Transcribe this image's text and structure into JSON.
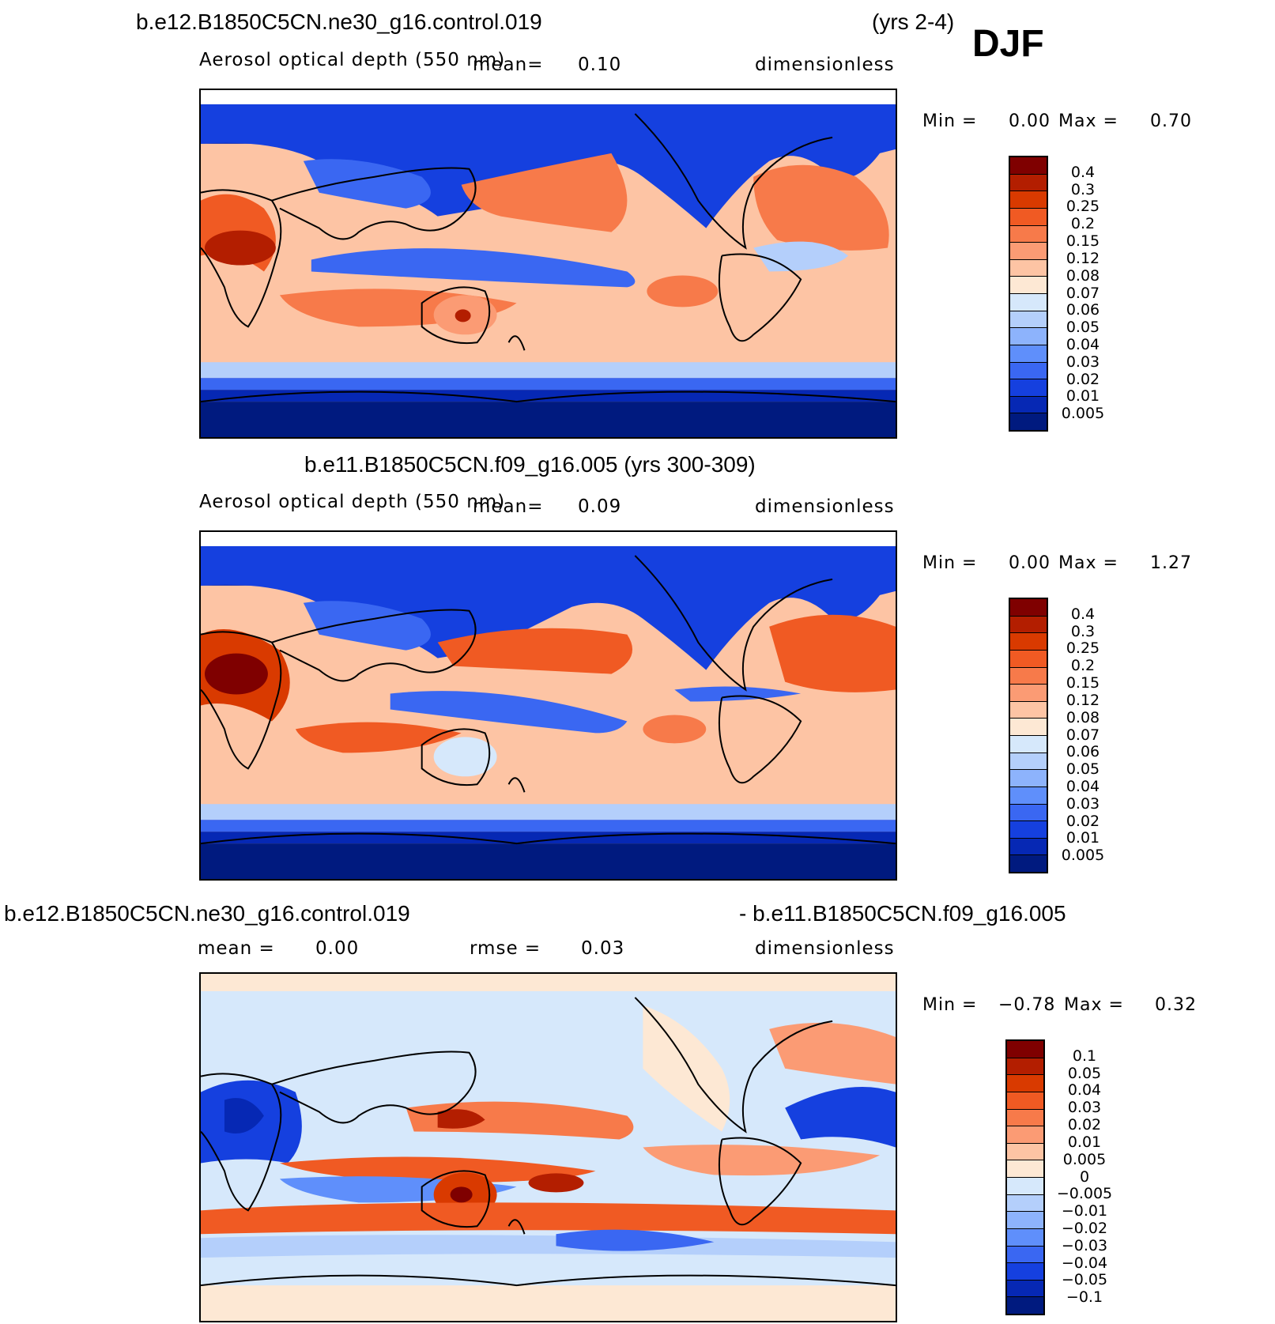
{
  "season": "DJF",
  "panels": [
    {
      "case_title": "b.e12.B1850C5CN.ne30_g16.control.019",
      "case_years": "(yrs 2-4)",
      "variable": "Aerosol optical depth (550 nm)",
      "mean_label": "mean=",
      "mean_value": "0.10",
      "units": "dimensionless",
      "min_label": "Min =",
      "min_value": "0.00",
      "max_label": "Max =",
      "max_value": "0.70"
    },
    {
      "case_title": "b.e11.B1850C5CN.f09_g16.005 (yrs 300-309)",
      "variable": "Aerosol optical depth (550 nm)",
      "mean_label": "mean=",
      "mean_value": "0.09",
      "units": "dimensionless",
      "min_label": "Min =",
      "min_value": "0.00",
      "max_label": "Max =",
      "max_value": "1.27"
    },
    {
      "case_title": "b.e12.B1850C5CN.ne30_g16.control.019",
      "case_title_right": "- b.e11.B1850C5CN.f09_g16.005",
      "mean_label": "mean =",
      "mean_value": "0.00",
      "rmse_label": "rmse =",
      "rmse_value": "0.03",
      "units": "dimensionless",
      "min_label": "Min =",
      "min_value": "−0.78",
      "max_label": "Max =",
      "max_value": "0.32"
    }
  ],
  "colorbar_absolute": {
    "labels": [
      "0.4",
      "0.3",
      "0.25",
      "0.2",
      "0.15",
      "0.12",
      "0.08",
      "0.07",
      "0.06",
      "0.05",
      "0.04",
      "0.03",
      "0.02",
      "0.01",
      "0.005"
    ],
    "colors": [
      "#7f0000",
      "#b31e00",
      "#d93a00",
      "#f05a23",
      "#f77a4a",
      "#fb9b74",
      "#fdc4a4",
      "#fde8d4",
      "#d6e8fb",
      "#b4cffb",
      "#8db3fc",
      "#5f8ffb",
      "#3a67f2",
      "#1540df",
      "#0628b4",
      "#001a7f"
    ]
  },
  "colorbar_difference": {
    "labels": [
      "0.1",
      "0.05",
      "0.04",
      "0.03",
      "0.02",
      "0.01",
      "0.005",
      "0",
      "−0.005",
      "−0.01",
      "−0.02",
      "−0.03",
      "−0.04",
      "−0.05",
      "−0.1"
    ],
    "colors": [
      "#7f0000",
      "#b31e00",
      "#d93a00",
      "#f05a23",
      "#f77a4a",
      "#fb9b74",
      "#fdc4a4",
      "#fde8d4",
      "#d6e8fb",
      "#b4cffb",
      "#8db3fc",
      "#5f8ffb",
      "#3a67f2",
      "#1540df",
      "#0628b4",
      "#001a7f"
    ]
  }
}
